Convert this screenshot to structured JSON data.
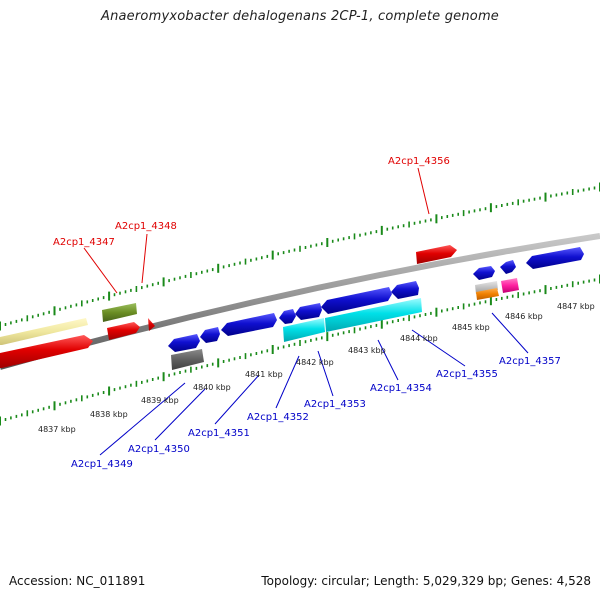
{
  "title": "Anaeromyxobacter dehalogenans 2CP-1, complete genome",
  "footer": {
    "accession": "Accession: NC_011891",
    "topology": "Topology: circular; Length: 5,029,329 bp; Genes: 4,528"
  },
  "colors": {
    "top_labels": "#e00000",
    "bottom_labels": "#0000c8",
    "ticks": "#1a8a1a",
    "backbone": "#808080"
  },
  "scale_labels": [
    "4837 kbp",
    "4838 kbp",
    "4839 kbp",
    "4840 kbp",
    "4841 kbp",
    "4842 kbp",
    "4843 kbp",
    "4844 kbp",
    "4845 kbp",
    "4846 kbp",
    "4847 kbp"
  ],
  "top_gene_labels": [
    "A2cp1_4347",
    "A2cp1_4348",
    "A2cp1_4356"
  ],
  "bottom_gene_labels": [
    "A2cp1_4349",
    "A2cp1_4350",
    "A2cp1_4351",
    "A2cp1_4352",
    "A2cp1_4353",
    "A2cp1_4354",
    "A2cp1_4355",
    "A2cp1_4357"
  ],
  "gene_colors": {
    "pale_yellow": "#f0e8a0",
    "red": "#e00000",
    "olive": "#6b8e23",
    "blue": "#1010d0",
    "cyan": "#00e0e8",
    "dark_gray": "#606060",
    "light_gray": "#c0c0c0",
    "orange": "#f08000",
    "magenta": "#ff20a0"
  }
}
